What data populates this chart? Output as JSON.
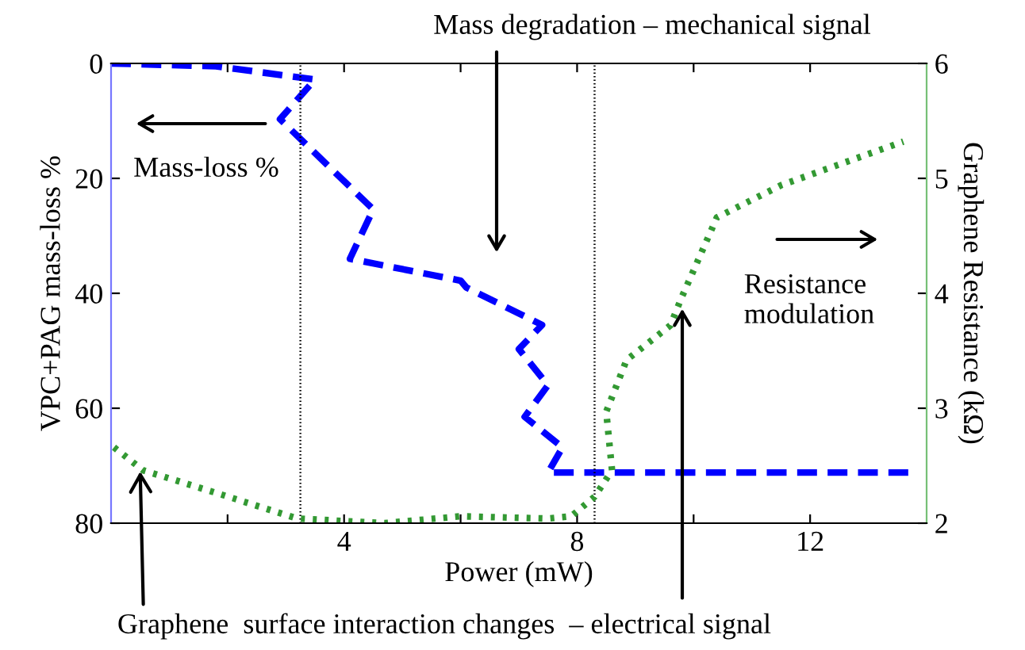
{
  "chart_data": {
    "type": "line",
    "xlabel": "Power (mW)",
    "ylabel": "VPC+PAG mass-loss %",
    "y2label": "Graphene Resistance (kΩ)",
    "xlim": [
      0,
      14
    ],
    "xticks": [
      {
        "value": 2,
        "label": null
      },
      4,
      {
        "value": 6,
        "label": null
      },
      8,
      {
        "value": 10,
        "label": null
      },
      12
    ],
    "ylim": [
      80,
      0
    ],
    "yticks": [
      0,
      20,
      40,
      60,
      80
    ],
    "y2lim": [
      2,
      6
    ],
    "y2ticks": [
      2,
      3,
      4,
      5,
      6
    ],
    "series": [
      {
        "color": "#0000ff",
        "line_style": "dashed",
        "x": [
          0,
          1.8,
          3.5,
          2.9,
          4.5,
          4.1,
          6.0,
          6.1,
          7.4,
          7.0,
          7.5,
          7.1,
          7.75,
          7.5,
          13.7
        ],
        "values": [
          0,
          0.5,
          2.8,
          9.7,
          25.4,
          34,
          37.8,
          39,
          45.5,
          49.7,
          56,
          61.5,
          66.8,
          71.2,
          71.2
        ]
      },
      {
        "color": "#339933",
        "line_style": "dotted",
        "axis": "y2",
        "x": [
          0.05,
          0.55,
          1.7,
          3.2,
          4.7,
          6.0,
          7.5,
          7.9,
          8.3,
          8.6,
          8.5,
          8.85,
          9.6,
          9.8,
          10.4,
          11.5,
          13.6
        ],
        "values": [
          2.66,
          2.46,
          2.28,
          2.04,
          2.0,
          2.06,
          2.04,
          2.06,
          2.23,
          2.46,
          2.97,
          3.42,
          3.72,
          3.97,
          4.66,
          4.94,
          5.32
        ]
      }
    ],
    "ref_lines": [
      {
        "axis": "x",
        "value": 3.25,
        "color": "#000000",
        "line_style": "dotted"
      },
      {
        "axis": "x",
        "value": 8.3,
        "color": "#000000",
        "line_style": "dotted"
      }
    ],
    "annotations": [
      "Mass degradation – mechanical signal",
      "Mass-loss %",
      "Resistance modulation",
      {
        "text": "Graphene  surface interaction changes  – electrical signal",
        "x": 0.5,
        "y": 71
      }
    ],
    "grid": false,
    "legend": false
  }
}
